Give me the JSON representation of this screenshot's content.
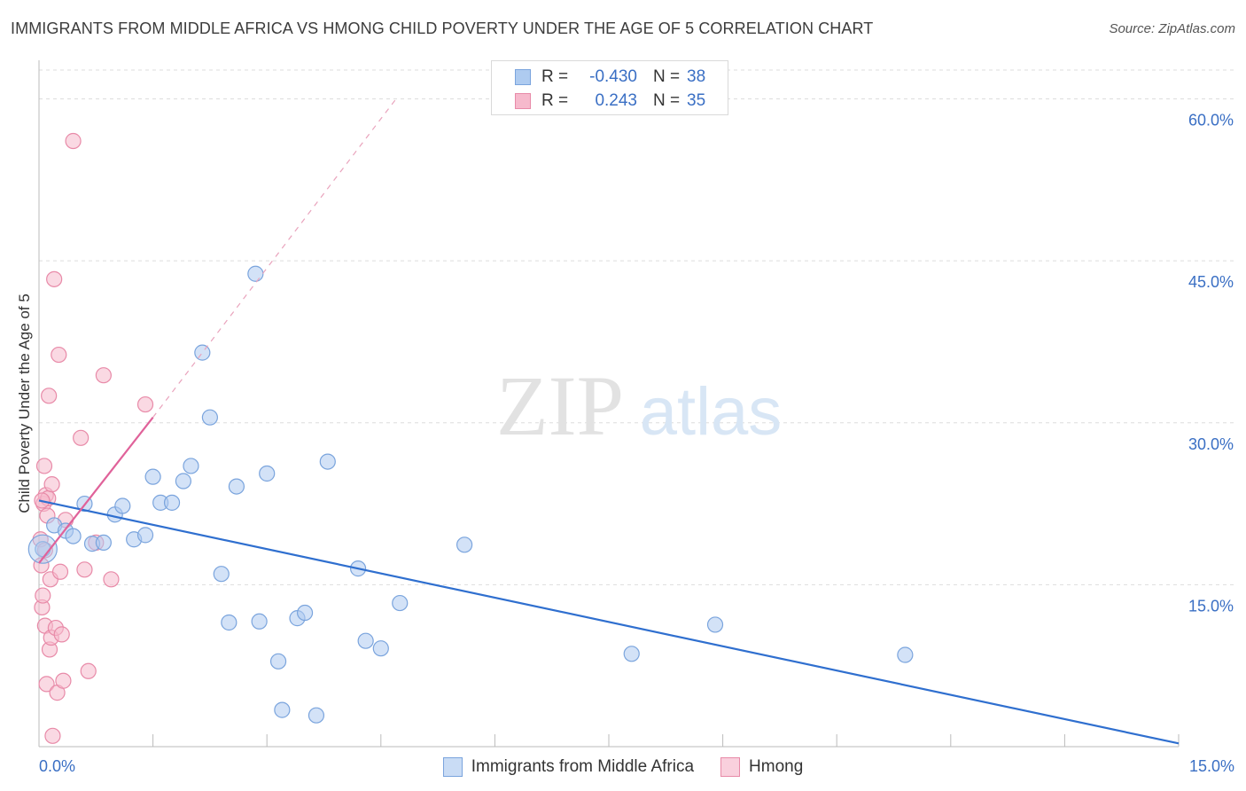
{
  "title": "IMMIGRANTS FROM MIDDLE AFRICA VS HMONG CHILD POVERTY UNDER THE AGE OF 5 CORRELATION CHART",
  "source": "Source: ZipAtlas.com",
  "watermark": {
    "zip": "ZIP",
    "atlas": "atlas"
  },
  "legend_top": [
    {
      "r_label": "R =",
      "r_value": "-0.430",
      "n_label": "N =",
      "n_value": "38"
    },
    {
      "r_label": "R =",
      "r_value": "0.243",
      "n_label": "N =",
      "n_value": "35"
    }
  ],
  "colors": {
    "blue_fill": "#aecbf0",
    "blue_stroke": "#7aa4dd",
    "blue_line": "#2f6fcf",
    "pink_fill": "#f6b9cc",
    "pink_stroke": "#e88aa8",
    "pink_line": "#e0629a",
    "tick_text": "#3a6fc4",
    "grid": "#dddddd"
  },
  "chart_data": {
    "type": "scatter",
    "title": "IMMIGRANTS FROM MIDDLE AFRICA VS HMONG CHILD POVERTY UNDER THE AGE OF 5 CORRELATION CHART",
    "xlabel": "",
    "ylabel": "Child Poverty Under the Age of 5",
    "xlim": [
      0,
      15
    ],
    "ylim": [
      0,
      63
    ],
    "x_tick_labels": [
      "0.0%",
      "15.0%"
    ],
    "y_ticks": [
      15,
      30,
      45,
      60
    ],
    "y_tick_labels": [
      "15.0%",
      "30.0%",
      "45.0%",
      "60.0%"
    ],
    "grid": true,
    "legend_position": "bottom",
    "series": [
      {
        "name": "Immigrants from Middle Africa",
        "color": "#aecbf0",
        "points": [
          [
            0.05,
            18.3
          ],
          [
            0.2,
            20.5
          ],
          [
            0.35,
            20.0
          ],
          [
            0.45,
            19.5
          ],
          [
            0.6,
            22.5
          ],
          [
            0.7,
            18.8
          ],
          [
            0.85,
            18.9
          ],
          [
            1.0,
            21.5
          ],
          [
            1.1,
            22.3
          ],
          [
            1.25,
            19.2
          ],
          [
            1.4,
            19.6
          ],
          [
            1.5,
            25.0
          ],
          [
            1.6,
            22.6
          ],
          [
            1.75,
            22.6
          ],
          [
            1.9,
            24.6
          ],
          [
            2.0,
            26.0
          ],
          [
            2.15,
            36.5
          ],
          [
            2.25,
            30.5
          ],
          [
            2.4,
            16.0
          ],
          [
            2.5,
            11.5
          ],
          [
            2.6,
            24.1
          ],
          [
            2.85,
            43.8
          ],
          [
            2.9,
            11.6
          ],
          [
            3.0,
            25.3
          ],
          [
            3.15,
            7.9
          ],
          [
            3.2,
            3.4
          ],
          [
            3.4,
            11.9
          ],
          [
            3.5,
            12.4
          ],
          [
            3.65,
            2.9
          ],
          [
            3.8,
            26.4
          ],
          [
            4.2,
            16.5
          ],
          [
            4.3,
            9.8
          ],
          [
            4.5,
            9.1
          ],
          [
            4.75,
            13.3
          ],
          [
            5.6,
            18.7
          ],
          [
            7.8,
            8.6
          ],
          [
            8.9,
            11.3
          ],
          [
            11.4,
            8.5
          ]
        ],
        "trend": [
          [
            0,
            22.8
          ],
          [
            15,
            0.3
          ]
        ]
      },
      {
        "name": "Hmong",
        "color": "#f6b9cc",
        "points": [
          [
            0.02,
            19.2
          ],
          [
            0.03,
            16.8
          ],
          [
            0.04,
            12.9
          ],
          [
            0.05,
            14.0
          ],
          [
            0.06,
            22.5
          ],
          [
            0.07,
            26.0
          ],
          [
            0.08,
            11.2
          ],
          [
            0.09,
            23.3
          ],
          [
            0.1,
            5.8
          ],
          [
            0.11,
            21.4
          ],
          [
            0.12,
            23.0
          ],
          [
            0.13,
            32.5
          ],
          [
            0.14,
            9.0
          ],
          [
            0.15,
            15.5
          ],
          [
            0.16,
            10.1
          ],
          [
            0.17,
            24.3
          ],
          [
            0.18,
            1.0
          ],
          [
            0.2,
            43.3
          ],
          [
            0.22,
            11.0
          ],
          [
            0.24,
            5.0
          ],
          [
            0.26,
            36.3
          ],
          [
            0.28,
            16.2
          ],
          [
            0.3,
            10.4
          ],
          [
            0.32,
            6.1
          ],
          [
            0.35,
            21.0
          ],
          [
            0.45,
            56.1
          ],
          [
            0.55,
            28.6
          ],
          [
            0.6,
            16.4
          ],
          [
            0.65,
            7.0
          ],
          [
            0.75,
            18.9
          ],
          [
            0.85,
            34.4
          ],
          [
            0.95,
            15.5
          ],
          [
            1.4,
            31.7
          ],
          [
            0.04,
            22.8
          ],
          [
            0.08,
            18.2
          ]
        ],
        "trend": [
          [
            0,
            17.0
          ],
          [
            1.5,
            30.5
          ]
        ],
        "trend_extension": [
          [
            1.5,
            30.5
          ],
          [
            4.7,
            60.0
          ]
        ]
      }
    ]
  }
}
